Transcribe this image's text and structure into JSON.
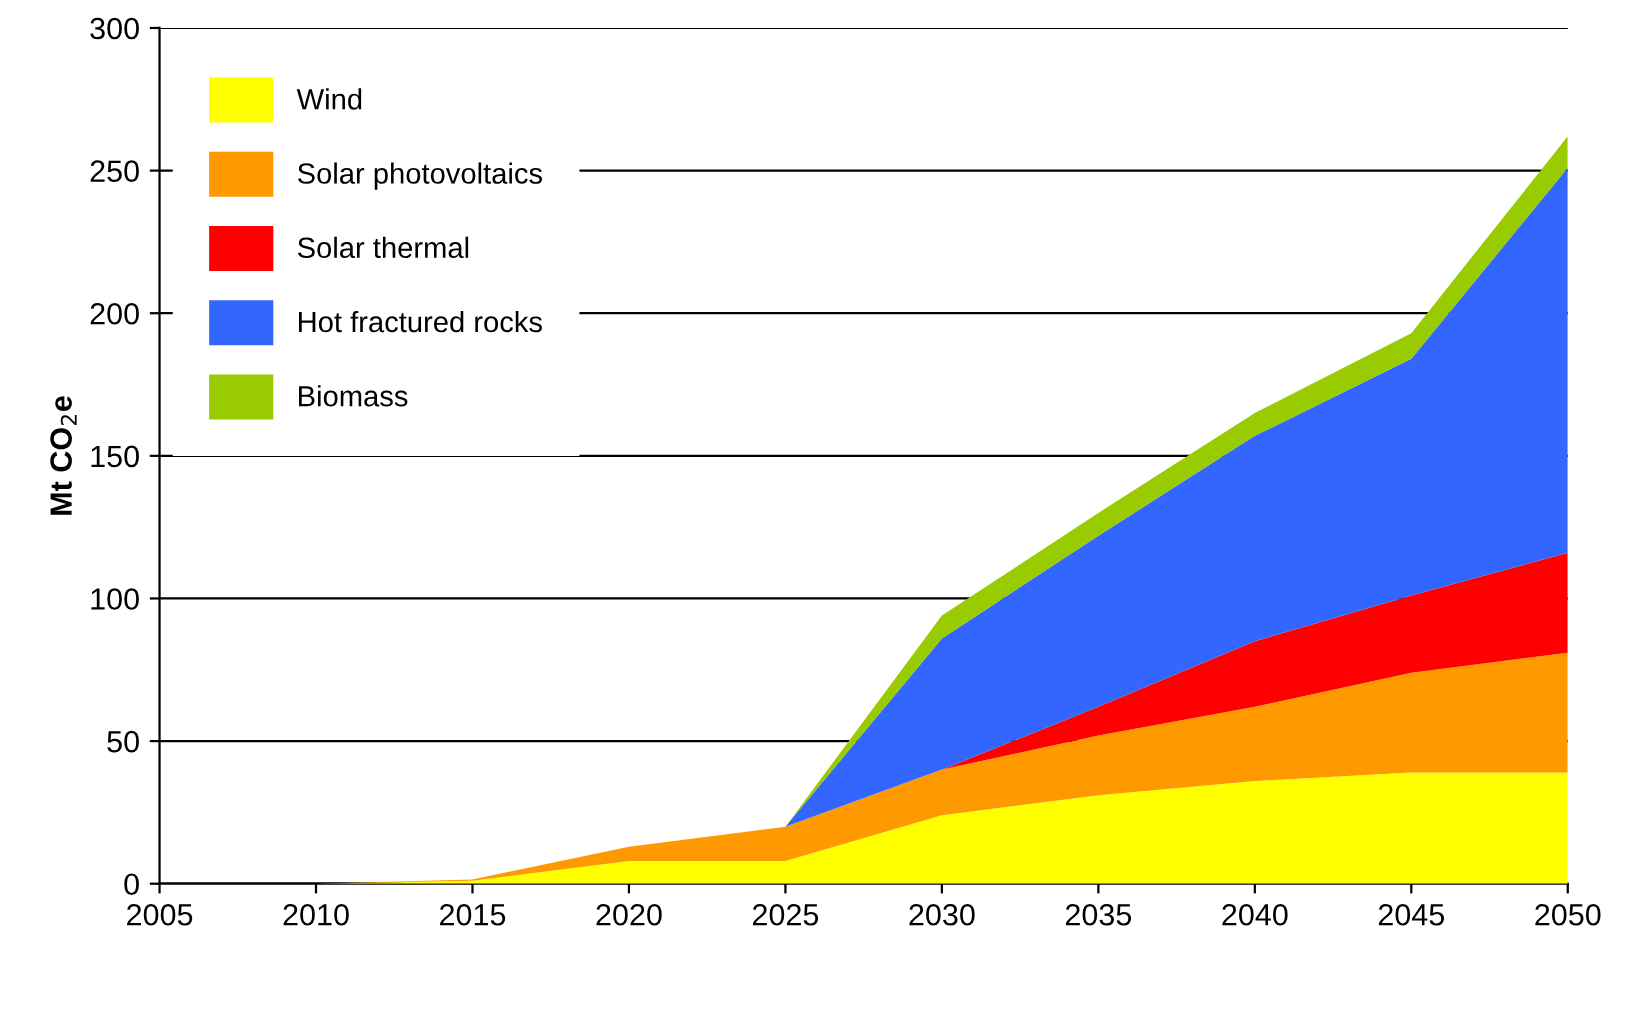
{
  "chart_data": {
    "type": "area",
    "stacked": true,
    "ylabel": "Mt CO$_{2}$e",
    "x": [
      2005,
      2010,
      2015,
      2020,
      2025,
      2030,
      2035,
      2040,
      2045,
      2050
    ],
    "series": [
      {
        "name": "Wind",
        "color": "#ffff00",
        "values": [
          0,
          0,
          1,
          8,
          8,
          24,
          31,
          36,
          39,
          39
        ]
      },
      {
        "name": "Solar photovoltaics",
        "color": "#ff9900",
        "values": [
          0,
          0,
          0.5,
          5,
          12,
          16,
          21,
          26,
          35,
          42
        ]
      },
      {
        "name": "Solar thermal",
        "color": "#ff0000",
        "values": [
          0,
          0,
          0,
          0,
          0,
          0,
          10,
          23,
          27,
          35
        ]
      },
      {
        "name": "Hot fractured rocks",
        "color": "#3366ff",
        "values": [
          0,
          0,
          0,
          0,
          0,
          46,
          60,
          72,
          83,
          135
        ]
      },
      {
        "name": "Biomass",
        "color": "#99cc00",
        "values": [
          0,
          0,
          0,
          0,
          0,
          8,
          8,
          8,
          9,
          11
        ]
      }
    ],
    "xlim": [
      2005,
      2050
    ],
    "xticks": [
      2005,
      2010,
      2015,
      2020,
      2025,
      2030,
      2035,
      2040,
      2045,
      2050
    ],
    "ylim": [
      0,
      300
    ],
    "yticks": [
      0,
      50,
      100,
      150,
      200,
      250,
      300
    ],
    "grid": "y",
    "legend": "top left"
  }
}
